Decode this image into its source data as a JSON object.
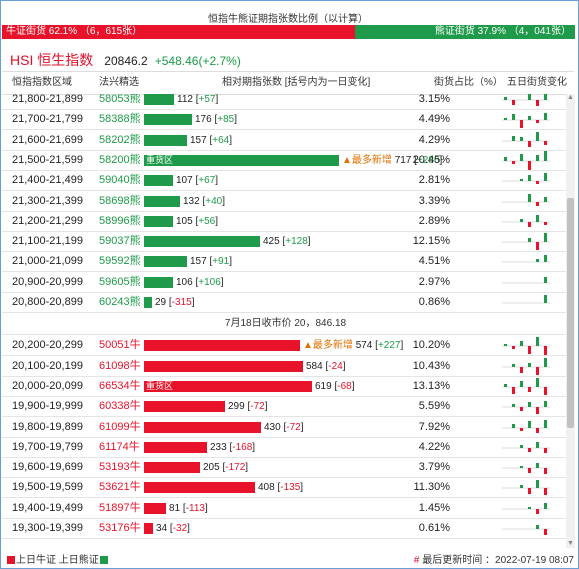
{
  "title": "恒指牛熊证期指张数比例（以计算）",
  "ratio": {
    "bull_label": "牛证街货 62.1% （6，615张）",
    "bear_label": "熊证街货 37.9% （4，041张）",
    "bull_fraction": 0.621
  },
  "hsi": {
    "name": "HSI 恒生指数",
    "price": "20846.2",
    "change": "+548.46(+2.7%)"
  },
  "headers": {
    "range": "恒指指数区域",
    "code": "法兴精选",
    "contracts": "相对期指张数 [括号内为一日变化]",
    "pct": "街货占比（%）",
    "five_day": "五日街货变化"
  },
  "colors": {
    "bull": "#e8132a",
    "bear": "#1e9a4a"
  },
  "divider": "7月18日收市价 20，846.18",
  "max_contracts": 717,
  "bear_rows": [
    {
      "range": "21,800-21,899",
      "code": "58053熊",
      "count": "112",
      "change": "+57",
      "value": 112,
      "pct": "3.15%",
      "badge": "",
      "note": ""
    },
    {
      "range": "21,700-21,799",
      "code": "58388熊",
      "count": "176",
      "change": "+85",
      "value": 176,
      "pct": "4.49%",
      "badge": "",
      "note": ""
    },
    {
      "range": "21,600-21,699",
      "code": "58202熊",
      "count": "157",
      "change": "+64",
      "value": 157,
      "pct": "4.29%",
      "badge": "",
      "note": ""
    },
    {
      "range": "21,500-21,599",
      "code": "58200熊",
      "count": "717",
      "change": "+286",
      "value": 717,
      "pct": "20.45%",
      "badge": "重货区",
      "note": "▲最多新增"
    },
    {
      "range": "21,400-21,499",
      "code": "59040熊",
      "count": "107",
      "change": "+67",
      "value": 107,
      "pct": "2.81%",
      "badge": "",
      "note": ""
    },
    {
      "range": "21,300-21,399",
      "code": "58698熊",
      "count": "132",
      "change": "+40",
      "value": 132,
      "pct": "3.39%",
      "badge": "",
      "note": ""
    },
    {
      "range": "21,200-21,299",
      "code": "58996熊",
      "count": "105",
      "change": "+56",
      "value": 105,
      "pct": "2.89%",
      "badge": "",
      "note": ""
    },
    {
      "range": "21,100-21,199",
      "code": "59037熊",
      "count": "425",
      "change": "+128",
      "value": 425,
      "pct": "12.15%",
      "badge": "",
      "note": ""
    },
    {
      "range": "21,000-21,099",
      "code": "59592熊",
      "count": "157",
      "change": "+91",
      "value": 157,
      "pct": "4.51%",
      "badge": "",
      "note": ""
    },
    {
      "range": "20,900-20,999",
      "code": "59605熊",
      "count": "106",
      "change": "+106",
      "value": 106,
      "pct": "2.97%",
      "badge": "",
      "note": ""
    },
    {
      "range": "20,800-20,899",
      "code": "60243熊",
      "count": "29",
      "change": "-315",
      "value": 29,
      "pct": "0.86%",
      "badge": "",
      "note": ""
    }
  ],
  "bull_rows": [
    {
      "range": "20,200-20,299",
      "code": "50051牛",
      "count": "574",
      "change": "+227",
      "value": 574,
      "pct": "10.20%",
      "badge": "",
      "note": "▲最多新增"
    },
    {
      "range": "20,100-20,199",
      "code": "61098牛",
      "count": "584",
      "change": "-24",
      "value": 584,
      "pct": "10.43%",
      "badge": "",
      "note": ""
    },
    {
      "range": "20,000-20,099",
      "code": "66534牛",
      "count": "619",
      "change": "-68",
      "value": 619,
      "pct": "13.13%",
      "badge": "重货区",
      "note": ""
    },
    {
      "range": "19,900-19,999",
      "code": "60338牛",
      "count": "299",
      "change": "-72",
      "value": 299,
      "pct": "5.59%",
      "badge": "",
      "note": ""
    },
    {
      "range": "19,800-19,899",
      "code": "61099牛",
      "count": "430",
      "change": "-72",
      "value": 430,
      "pct": "7.92%",
      "badge": "",
      "note": ""
    },
    {
      "range": "19,700-19,799",
      "code": "61174牛",
      "count": "233",
      "change": "-168",
      "value": 233,
      "pct": "4.22%",
      "badge": "",
      "note": ""
    },
    {
      "range": "19,600-19,699",
      "code": "53193牛",
      "count": "205",
      "change": "-172",
      "value": 205,
      "pct": "3.79%",
      "badge": "",
      "note": ""
    },
    {
      "range": "19,500-19,599",
      "code": "53621牛",
      "count": "408",
      "change": "-135",
      "value": 408,
      "pct": "11.30%",
      "badge": "",
      "note": ""
    },
    {
      "range": "19,400-19,499",
      "code": "51897牛",
      "count": "81",
      "change": "-113",
      "value": 81,
      "pct": "1.45%",
      "badge": "",
      "note": ""
    },
    {
      "range": "19,300-19,399",
      "code": "53176牛",
      "count": "34",
      "change": "-32",
      "value": 34,
      "pct": "0.61%",
      "badge": "",
      "note": ""
    }
  ],
  "footer": {
    "legend_bull": "上日牛证",
    "legend_bear": "上日熊证",
    "updated_label": "最后更新时间 ：2022-07-19 08:07"
  }
}
